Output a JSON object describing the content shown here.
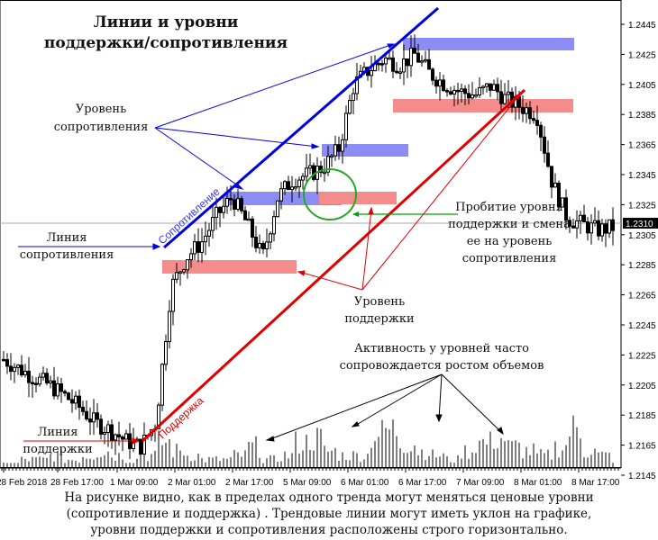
{
  "title": {
    "line1": "Линии и уровни",
    "line2": "поддержки/сопротивления"
  },
  "annotations": {
    "resistance_level": [
      "Уровень",
      "сопротивления"
    ],
    "resistance_line": [
      "Линия",
      "сопротивления"
    ],
    "support_line": [
      "Линия",
      "поддержки"
    ],
    "support_level": [
      "Уровень",
      "поддержки"
    ],
    "breakout": [
      "Пробитие уровня",
      "поддержки и смена",
      "ее на уровень",
      "сопротивления"
    ],
    "volume_note": [
      "Активность у уровней часто",
      "сопровождается ростом объемов"
    ],
    "trendline_resistance_label": "Сопротивление",
    "trendline_support_label": "Поддержка"
  },
  "caption": [
    "На рисунке видно, как в пределах одного тренда могут меняться ценовые уровни",
    "(сопротивление и поддержка) . Трендовые линии могут иметь уклон на графике,",
    "уровни поддержки и сопротивления расположены строго горизонтально."
  ],
  "colors": {
    "resistance": "#0000e0",
    "resistance_zone": "#8c8cf5",
    "support": "#e00000",
    "support_zone": "#f58c8c",
    "breakout_arrow": "#00a000",
    "circle": "#22aa22",
    "current_price_line": "#a0a0a0"
  },
  "current_price": "1.2310",
  "chart_data": {
    "type": "candlestick",
    "title": "Линии и уровни поддержки/сопротивления",
    "xlabel": "",
    "ylabel": "",
    "ylim": [
      1.214,
      1.2465
    ],
    "y_ticks": [
      "1.2445",
      "1.2425",
      "1.2405",
      "1.2385",
      "1.2365",
      "1.2345",
      "1.2325",
      "1.2305",
      "1.2285",
      "1.2265",
      "1.2245",
      "1.2225",
      "1.2205",
      "1.2185",
      "1.2165",
      "1.2145"
    ],
    "x_ticks": [
      "28 Feb 2018",
      "28 Feb 17:00",
      "1 Mar 09:00",
      "2 Mar 01:00",
      "2 Mar 17:00",
      "5 Mar 09:00",
      "6 Mar 01:00",
      "6 Mar 17:00",
      "7 Mar 09:00",
      "8 Mar 01:00",
      "8 Mar 17:00"
    ],
    "current_price": 1.231,
    "levels": [
      {
        "type": "resistance",
        "price": 1.2433,
        "from": "7 Mar 01:00",
        "to": "8 Mar 21:00"
      },
      {
        "type": "resistance",
        "price": 1.2362,
        "from": "6 Mar 01:00",
        "to": "6 Mar 13:00"
      },
      {
        "type": "resistance",
        "price": 1.2325,
        "from": "2 Mar 05:00",
        "to": "5 Mar 17:00"
      },
      {
        "type": "support",
        "price": 1.239,
        "from": "7 Mar 01:00",
        "to": "8 Mar 21:00"
      },
      {
        "type": "support",
        "price": 1.2325,
        "from": "5 Mar 17:00",
        "to": "6 Mar 09:00"
      },
      {
        "type": "support",
        "price": 1.2282,
        "from": "1 Mar 17:00",
        "to": "5 Mar 09:00"
      }
    ],
    "trendlines": [
      {
        "type": "resistance",
        "label": "Сопротивление",
        "start_price": 1.2305,
        "end_price": 1.2475
      },
      {
        "type": "support",
        "label": "Поддержка",
        "start_price": 1.2162,
        "end_price": 1.2405
      }
    ],
    "series": [
      {
        "name": "price_close_approx",
        "values": [
          1.2222,
          1.2216,
          1.221,
          1.2205,
          1.2198,
          1.219,
          1.218,
          1.2175,
          1.2168,
          1.2164,
          1.218,
          1.227,
          1.229,
          1.23,
          1.2318,
          1.233,
          1.2312,
          1.229,
          1.233,
          1.2342,
          1.2345,
          1.235,
          1.2362,
          1.2405,
          1.2415,
          1.2422,
          1.2418,
          1.2425,
          1.2412,
          1.2405,
          1.24,
          1.2398,
          1.2404,
          1.2395,
          1.239,
          1.2385,
          1.234,
          1.2316,
          1.2312,
          1.2308,
          1.231
        ]
      },
      {
        "name": "volume_relative",
        "values": [
          1,
          2,
          2,
          3,
          2,
          3,
          4,
          3,
          2,
          3,
          6,
          4,
          3,
          2,
          2,
          3,
          5,
          2,
          3,
          6,
          7,
          4,
          3,
          3,
          8,
          9,
          6,
          4,
          3,
          2,
          4,
          6,
          7,
          5,
          4,
          3,
          5,
          9,
          4,
          3,
          2
        ]
      }
    ]
  }
}
